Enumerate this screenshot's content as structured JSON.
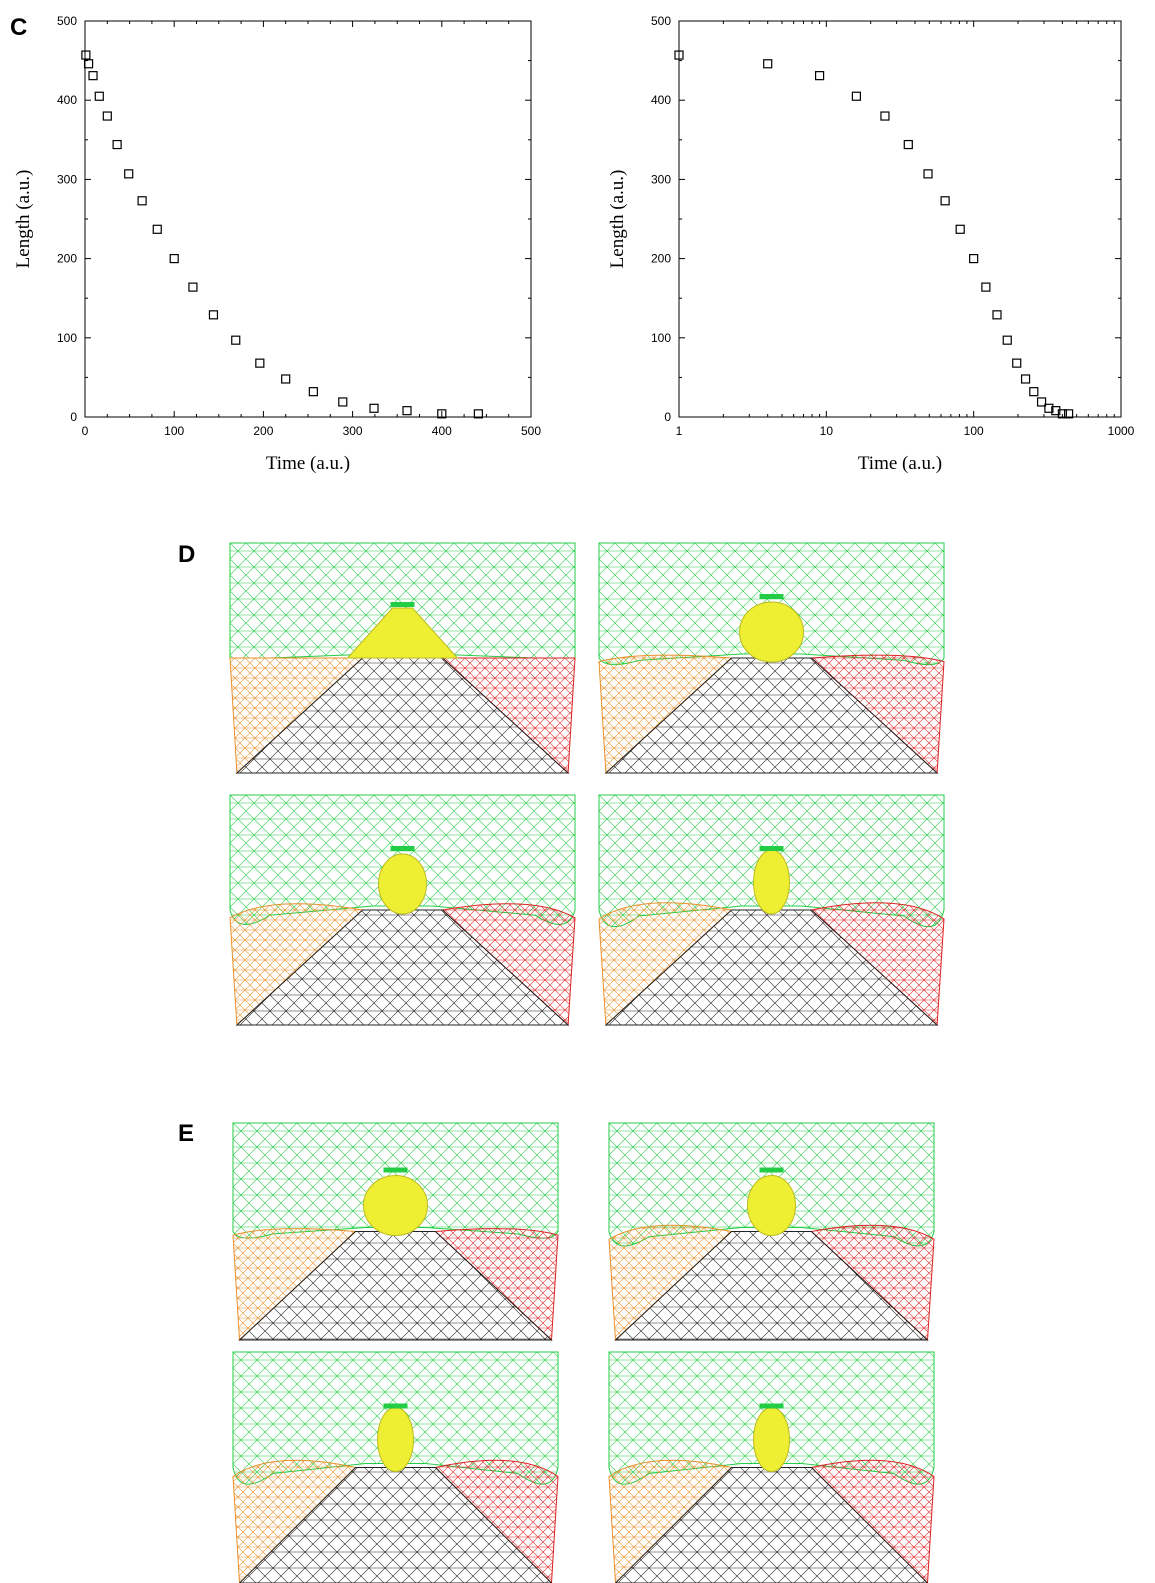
{
  "figure": {
    "panel_c_label": "C",
    "panel_d_label": "D",
    "panel_e_label": "E"
  },
  "colors": {
    "mesh_green": "#22cc44",
    "mesh_yellow": "#eeee33",
    "mesh_orange": "#e8902a",
    "mesh_red": "#dd2222",
    "mesh_black": "#222222"
  },
  "chart_data": [
    {
      "type": "scatter",
      "title": "",
      "xlabel": "Time (a.u.)",
      "ylabel": "Length (a.u.)",
      "xscale": "linear",
      "xlim": [
        0,
        500
      ],
      "ylim": [
        0,
        500
      ],
      "xticks": [
        "0",
        "100",
        "200",
        "300",
        "400",
        "500"
      ],
      "yticks": [
        "0",
        "100",
        "200",
        "300",
        "400",
        "500"
      ],
      "marker": "open-square",
      "x": [
        1,
        4,
        9,
        16,
        25,
        36,
        49,
        64,
        81,
        100,
        121,
        144,
        169,
        196,
        225,
        256,
        289,
        324,
        361,
        400,
        441
      ],
      "y": [
        457,
        446,
        431,
        405,
        380,
        344,
        307,
        273,
        237,
        200,
        164,
        129,
        97,
        68,
        48,
        32,
        19,
        11,
        8,
        4,
        4
      ]
    },
    {
      "type": "scatter",
      "title": "",
      "xlabel": "Time (a.u.)",
      "ylabel": "Length (a.u.)",
      "xscale": "log",
      "xlim": [
        1,
        1000
      ],
      "ylim": [
        0,
        500
      ],
      "xticks": [
        "1",
        "10",
        "100",
        "1000"
      ],
      "yticks": [
        "0",
        "100",
        "200",
        "300",
        "400",
        "500"
      ],
      "marker": "open-square",
      "x": [
        1,
        4,
        9,
        16,
        25,
        36,
        49,
        64,
        81,
        100,
        121,
        144,
        169,
        196,
        225,
        256,
        289,
        324,
        361,
        400,
        441
      ],
      "y": [
        457,
        446,
        431,
        405,
        380,
        344,
        307,
        273,
        237,
        200,
        164,
        129,
        97,
        68,
        48,
        32,
        19,
        11,
        8,
        4,
        4
      ]
    }
  ]
}
